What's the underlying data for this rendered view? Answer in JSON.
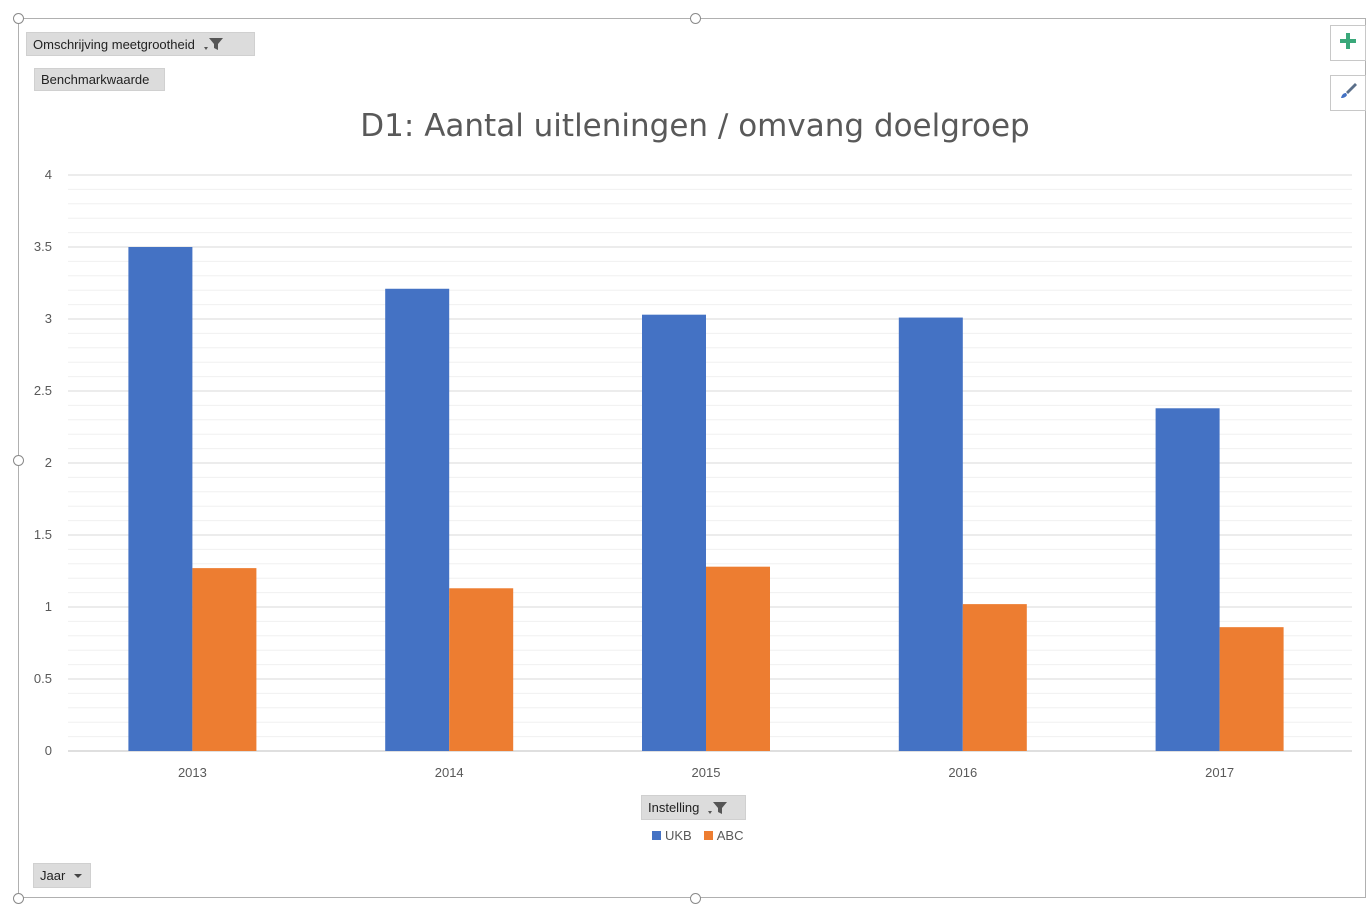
{
  "filters": {
    "measure_field": "Omschrijving meetgrootheid",
    "value_field": "Benchmarkwaarde",
    "legend_field": "Instelling",
    "axis_field": "Jaar"
  },
  "side_buttons": {
    "add_icon": "plus-icon",
    "style_icon": "brush-icon"
  },
  "chart_data": {
    "type": "bar",
    "title": "D1: Aantal uitleningen / omvang doelgroep",
    "xlabel": "",
    "ylabel": "",
    "categories": [
      "2013",
      "2014",
      "2015",
      "2016",
      "2017"
    ],
    "series": [
      {
        "name": "UKB",
        "color": "#4472c4",
        "values": [
          3.5,
          3.21,
          3.03,
          3.01,
          2.38
        ]
      },
      {
        "name": "ABC",
        "color": "#ed7d31",
        "values": [
          1.27,
          1.13,
          1.28,
          1.02,
          0.86
        ]
      }
    ],
    "ylim": [
      0,
      4
    ],
    "yticks": [
      "0",
      "0.5",
      "1",
      "1.5",
      "2",
      "2.5",
      "3",
      "3.5",
      "4"
    ],
    "grid": true,
    "minor_grid": true,
    "legend_position": "bottom"
  }
}
